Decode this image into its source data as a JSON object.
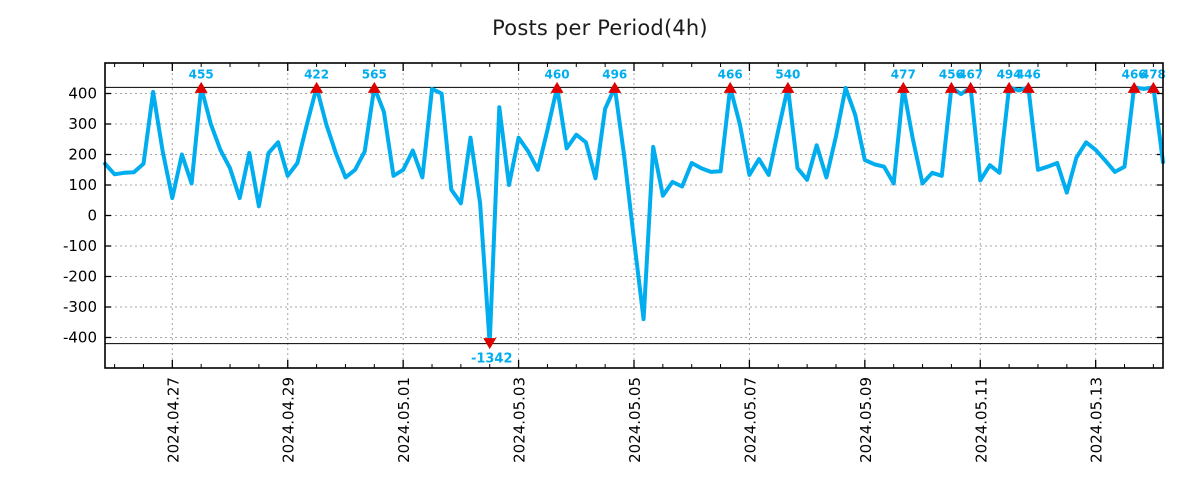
{
  "chart_data": {
    "type": "line",
    "title": "Posts per Period(4h)",
    "period": "4h",
    "line_color": "#00ADEF",
    "marker_color": "#E00000",
    "annotation_color": "#00ADEF",
    "grid_color": "#a6a6a6",
    "axis_color": "#000000",
    "background_color": "#ffffff",
    "clip_threshold": 420,
    "ylim": [
      -500,
      500
    ],
    "y_ticks": [
      400,
      300,
      200,
      100,
      0,
      -100,
      -200,
      -300,
      -400
    ],
    "x_tick_labels": [
      {
        "label": "2024.04.27",
        "index": 7
      },
      {
        "label": "2024.04.29",
        "index": 19
      },
      {
        "label": "2024.05.01",
        "index": 31
      },
      {
        "label": "2024.05.03",
        "index": 43
      },
      {
        "label": "2024.05.05",
        "index": 55
      },
      {
        "label": "2024.05.07",
        "index": 67
      },
      {
        "label": "2024.05.09",
        "index": 79
      },
      {
        "label": "2024.05.11",
        "index": 91
      },
      {
        "label": "2024.05.13",
        "index": 103
      }
    ],
    "minor_tick_every_indices": 3,
    "values": [
      170,
      135,
      140,
      142,
      170,
      405,
      210,
      57,
      200,
      105,
      455,
      300,
      215,
      155,
      57,
      205,
      30,
      205,
      240,
      130,
      172,
      300,
      422,
      300,
      205,
      125,
      150,
      210,
      565,
      340,
      130,
      150,
      213,
      125,
      415,
      400,
      85,
      40,
      255,
      40,
      -1342,
      355,
      100,
      255,
      210,
      150,
      280,
      460,
      220,
      265,
      240,
      122,
      350,
      496,
      190,
      -80,
      -340,
      225,
      65,
      110,
      95,
      172,
      155,
      143,
      145,
      466,
      300,
      133,
      185,
      133,
      280,
      540,
      155,
      117,
      230,
      125,
      260,
      418,
      330,
      182,
      168,
      160,
      105,
      477,
      250,
      105,
      140,
      130,
      456,
      398,
      467,
      115,
      165,
      140,
      494,
      410,
      446,
      150,
      160,
      172,
      75,
      190,
      240,
      215,
      180,
      143,
      160,
      466,
      415,
      478,
      175
    ],
    "anomalies": [
      {
        "index": 10,
        "value": 455,
        "label": "455",
        "direction": "up"
      },
      {
        "index": 22,
        "value": 422,
        "label": "422",
        "direction": "up"
      },
      {
        "index": 28,
        "value": 565,
        "label": "565",
        "direction": "up"
      },
      {
        "index": 40,
        "value": -1342,
        "label": "-1342",
        "direction": "down"
      },
      {
        "index": 47,
        "value": 460,
        "label": "460",
        "direction": "up"
      },
      {
        "index": 53,
        "value": 496,
        "label": "496",
        "direction": "up"
      },
      {
        "index": 65,
        "value": 466,
        "label": "466",
        "direction": "up"
      },
      {
        "index": 71,
        "value": 540,
        "label": "540",
        "direction": "up"
      },
      {
        "index": 83,
        "value": 477,
        "label": "477",
        "direction": "up"
      },
      {
        "index": 88,
        "value": 456,
        "label": "456",
        "direction": "up"
      },
      {
        "index": 90,
        "value": 467,
        "label": "467",
        "direction": "up"
      },
      {
        "index": 94,
        "value": 494,
        "label": "494",
        "direction": "up"
      },
      {
        "index": 96,
        "value": 446,
        "label": "446",
        "direction": "up"
      },
      {
        "index": 107,
        "value": 466,
        "label": "466",
        "direction": "up"
      },
      {
        "index": 109,
        "value": 478,
        "label": "478",
        "direction": "up"
      }
    ]
  }
}
